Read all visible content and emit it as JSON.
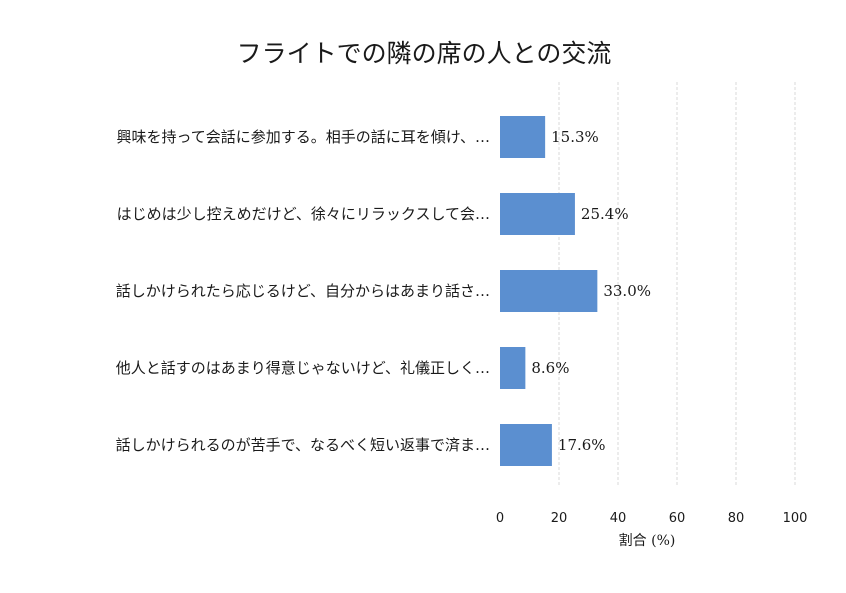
{
  "chart_data": {
    "type": "bar",
    "orientation": "horizontal",
    "title": "フライトでの隣の席の人との交流",
    "xlabel": "割合 (%)",
    "ylabel": "",
    "xlim": [
      0,
      100
    ],
    "xticks": [
      0,
      20,
      40,
      60,
      80,
      100
    ],
    "grid": "vertical-dashed",
    "bar_color": "#5b8fd0",
    "categories": [
      "興味を持って会話に参加する。相手の話に耳を傾け、…",
      "はじめは少し控えめだけど、徐々にリラックスして会…",
      "話しかけられたら応じるけど、自分からはあまり話さ…",
      "他人と話すのはあまり得意じゃないけど、礼儀正しく…",
      "話しかけられるのが苦手で、なるべく短い返事で済ま…"
    ],
    "values": [
      15.3,
      25.4,
      33.0,
      8.6,
      17.6
    ],
    "value_labels": [
      "15.3%",
      "25.4%",
      "33.0%",
      "8.6%",
      "17.6%"
    ]
  }
}
